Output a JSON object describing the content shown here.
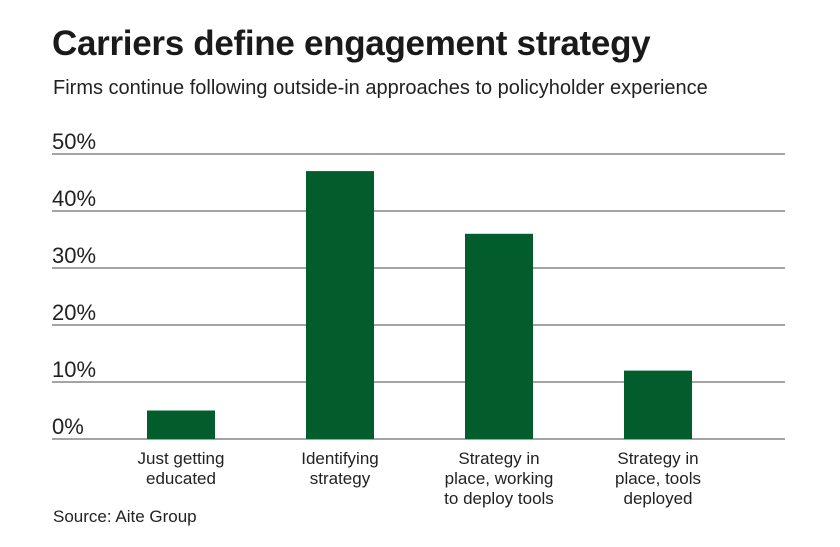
{
  "chart_data": {
    "type": "bar",
    "title": "Carriers define engagement strategy",
    "subtitle": "Firms continue following outside-in approaches to policyholder experience",
    "source": "Source: Aite Group",
    "categories": [
      [
        "Just getting",
        "educated"
      ],
      [
        "Identifying",
        "strategy"
      ],
      [
        "Strategy in",
        "place, working",
        "to deploy tools"
      ],
      [
        "Strategy in",
        "place, tools",
        "deployed"
      ]
    ],
    "values": [
      5,
      47,
      36,
      12
    ],
    "ylim": [
      0,
      50
    ],
    "yticks": [
      0,
      10,
      20,
      30,
      40,
      50
    ],
    "ytick_labels": [
      "0%",
      "10%",
      "20%",
      "30%",
      "40%",
      "50%"
    ],
    "grid": true,
    "bar_color": "#035C2C",
    "grid_color": "#4a4a4a",
    "xlabel": "",
    "ylabel": ""
  }
}
